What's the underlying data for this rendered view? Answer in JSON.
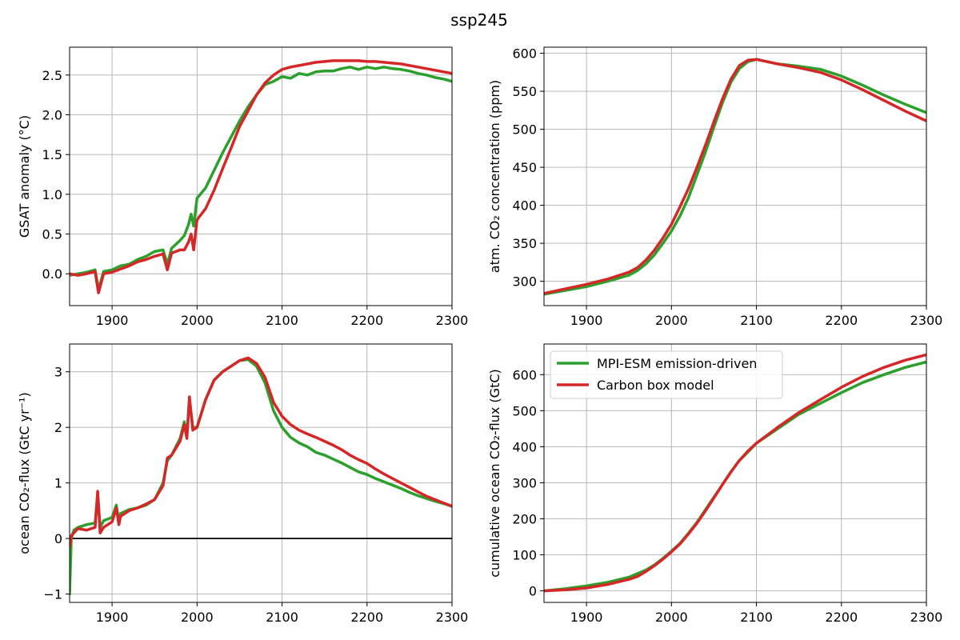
{
  "figure_title": "ssp245",
  "colors": {
    "green": "#2ca02c",
    "red": "#d62728",
    "grid": "#b0b0b0",
    "zero_line": "#000000"
  },
  "chart_data": [
    {
      "id": "gsat",
      "type": "line",
      "ylabel": "GSAT anomaly (°C)",
      "xlim": [
        1850,
        2300
      ],
      "ylim": [
        -0.4,
        2.85
      ],
      "xticks": [
        1900,
        2000,
        2100,
        2200,
        2300
      ],
      "yticks": [
        0.0,
        0.5,
        1.0,
        1.5,
        2.0,
        2.5
      ],
      "ytick_labels": [
        "0.0",
        "0.5",
        "1.0",
        "1.5",
        "2.0",
        "2.5"
      ],
      "grid": true,
      "series": [
        {
          "name": "MPI-ESM emission-driven",
          "color": "#2ca02c",
          "x": [
            1850,
            1860,
            1870,
            1880,
            1884,
            1890,
            1900,
            1910,
            1920,
            1930,
            1940,
            1950,
            1960,
            1965,
            1970,
            1980,
            1985,
            1990,
            1993,
            1996,
            2000,
            2010,
            2020,
            2030,
            2040,
            2050,
            2060,
            2070,
            2080,
            2090,
            2100,
            2110,
            2120,
            2130,
            2140,
            2150,
            2160,
            2170,
            2180,
            2190,
            2200,
            2210,
            2220,
            2230,
            2240,
            2250,
            2260,
            2270,
            2280,
            2290,
            2300
          ],
          "y": [
            -0.02,
            0.0,
            0.02,
            0.05,
            -0.2,
            0.03,
            0.05,
            0.1,
            0.12,
            0.18,
            0.22,
            0.28,
            0.3,
            0.12,
            0.32,
            0.42,
            0.48,
            0.62,
            0.75,
            0.6,
            0.95,
            1.08,
            1.3,
            1.52,
            1.72,
            1.92,
            2.1,
            2.25,
            2.38,
            2.42,
            2.48,
            2.46,
            2.52,
            2.5,
            2.54,
            2.55,
            2.55,
            2.58,
            2.6,
            2.57,
            2.6,
            2.58,
            2.6,
            2.58,
            2.57,
            2.55,
            2.52,
            2.5,
            2.47,
            2.45,
            2.42
          ]
        },
        {
          "name": "Carbon box model",
          "color": "#d62728",
          "x": [
            1850,
            1860,
            1870,
            1880,
            1884,
            1890,
            1900,
            1910,
            1920,
            1930,
            1940,
            1950,
            1960,
            1965,
            1970,
            1980,
            1985,
            1990,
            1993,
            1996,
            2000,
            2010,
            2020,
            2030,
            2040,
            2050,
            2060,
            2070,
            2080,
            2090,
            2100,
            2110,
            2120,
            2130,
            2140,
            2150,
            2160,
            2170,
            2180,
            2190,
            2200,
            2210,
            2220,
            2230,
            2240,
            2250,
            2260,
            2270,
            2280,
            2290,
            2300
          ],
          "y": [
            0.0,
            -0.02,
            0.0,
            0.03,
            -0.24,
            0.0,
            0.02,
            0.06,
            0.1,
            0.15,
            0.18,
            0.22,
            0.25,
            0.05,
            0.26,
            0.3,
            0.3,
            0.4,
            0.5,
            0.3,
            0.68,
            0.82,
            1.05,
            1.32,
            1.58,
            1.85,
            2.05,
            2.25,
            2.4,
            2.5,
            2.57,
            2.6,
            2.62,
            2.64,
            2.66,
            2.67,
            2.68,
            2.68,
            2.68,
            2.68,
            2.67,
            2.67,
            2.66,
            2.65,
            2.64,
            2.62,
            2.6,
            2.58,
            2.56,
            2.54,
            2.52
          ]
        }
      ]
    },
    {
      "id": "co2",
      "type": "line",
      "ylabel": "atm. CO₂ concentration (ppm)",
      "xlim": [
        1850,
        2300
      ],
      "ylim": [
        268,
        608
      ],
      "xticks": [
        1900,
        2000,
        2100,
        2200,
        2300
      ],
      "yticks": [
        300,
        350,
        400,
        450,
        500,
        550,
        600
      ],
      "ytick_labels": [
        "300",
        "350",
        "400",
        "450",
        "500",
        "550",
        "600"
      ],
      "grid": true,
      "series": [
        {
          "name": "MPI-ESM emission-driven",
          "color": "#2ca02c",
          "x": [
            1850,
            1875,
            1900,
            1925,
            1950,
            1960,
            1970,
            1980,
            1990,
            2000,
            2010,
            2020,
            2030,
            2040,
            2050,
            2060,
            2070,
            2080,
            2090,
            2100,
            2125,
            2150,
            2175,
            2200,
            2225,
            2250,
            2275,
            2300
          ],
          "y": [
            283,
            288,
            293,
            300,
            308,
            314,
            323,
            335,
            350,
            366,
            386,
            410,
            440,
            470,
            503,
            535,
            562,
            580,
            589,
            592,
            586,
            583,
            579,
            570,
            558,
            545,
            533,
            522
          ]
        },
        {
          "name": "Carbon box model",
          "color": "#d62728",
          "x": [
            1850,
            1875,
            1900,
            1925,
            1950,
            1960,
            1970,
            1980,
            1990,
            2000,
            2010,
            2020,
            2030,
            2040,
            2050,
            2060,
            2070,
            2080,
            2090,
            2100,
            2125,
            2150,
            2175,
            2200,
            2225,
            2250,
            2275,
            2300
          ],
          "y": [
            284,
            290,
            296,
            303,
            312,
            318,
            328,
            341,
            357,
            375,
            398,
            422,
            450,
            479,
            510,
            540,
            566,
            584,
            591,
            592,
            586,
            581,
            575,
            565,
            552,
            538,
            524,
            511
          ]
        }
      ]
    },
    {
      "id": "flux",
      "type": "line",
      "ylabel": "ocean CO₂-flux (GtC yr⁻¹)",
      "xlim": [
        1850,
        2300
      ],
      "ylim": [
        -1.15,
        3.5
      ],
      "xticks": [
        1900,
        2000,
        2100,
        2200,
        2300
      ],
      "yticks": [
        -1,
        0,
        1,
        2,
        3
      ],
      "ytick_labels": [
        "−1",
        "0",
        "1",
        "2",
        "3"
      ],
      "hline": 0,
      "grid": true,
      "series": [
        {
          "name": "MPI-ESM emission-driven",
          "color": "#2ca02c",
          "x": [
            1850,
            1852,
            1855,
            1860,
            1870,
            1880,
            1883,
            1886,
            1890,
            1900,
            1905,
            1908,
            1910,
            1920,
            1930,
            1940,
            1950,
            1960,
            1965,
            1970,
            1980,
            1985,
            1988,
            1991,
            1995,
            2000,
            2010,
            2020,
            2030,
            2040,
            2050,
            2060,
            2070,
            2080,
            2090,
            2100,
            2110,
            2120,
            2130,
            2140,
            2150,
            2160,
            2170,
            2180,
            2190,
            2200,
            2210,
            2220,
            2230,
            2240,
            2250,
            2260,
            2270,
            2280,
            2290,
            2300
          ],
          "y": [
            -1.0,
            0.0,
            0.15,
            0.2,
            0.25,
            0.28,
            0.8,
            0.2,
            0.32,
            0.38,
            0.6,
            0.3,
            0.45,
            0.52,
            0.55,
            0.6,
            0.7,
            1.0,
            1.4,
            1.5,
            1.8,
            2.1,
            1.85,
            2.5,
            2.0,
            2.0,
            2.5,
            2.85,
            3.0,
            3.1,
            3.2,
            3.22,
            3.1,
            2.8,
            2.3,
            2.0,
            1.82,
            1.72,
            1.65,
            1.55,
            1.5,
            1.43,
            1.36,
            1.28,
            1.2,
            1.15,
            1.08,
            1.02,
            0.96,
            0.9,
            0.83,
            0.77,
            0.72,
            0.67,
            0.63,
            0.58
          ]
        },
        {
          "name": "Carbon box model",
          "color": "#d62728",
          "x": [
            1850,
            1852,
            1855,
            1860,
            1870,
            1880,
            1883,
            1886,
            1890,
            1900,
            1905,
            1908,
            1910,
            1920,
            1930,
            1940,
            1950,
            1960,
            1965,
            1970,
            1980,
            1985,
            1988,
            1991,
            1995,
            2000,
            2010,
            2020,
            2030,
            2040,
            2050,
            2060,
            2070,
            2080,
            2090,
            2100,
            2110,
            2120,
            2130,
            2140,
            2150,
            2160,
            2170,
            2180,
            2190,
            2200,
            2210,
            2220,
            2230,
            2240,
            2250,
            2260,
            2270,
            2280,
            2290,
            2300
          ],
          "y": [
            -0.15,
            0.05,
            0.1,
            0.18,
            0.15,
            0.2,
            0.85,
            0.1,
            0.2,
            0.3,
            0.55,
            0.25,
            0.4,
            0.5,
            0.55,
            0.62,
            0.7,
            0.95,
            1.45,
            1.5,
            1.75,
            2.05,
            1.8,
            2.55,
            1.95,
            2.0,
            2.5,
            2.85,
            3.0,
            3.1,
            3.2,
            3.25,
            3.15,
            2.9,
            2.45,
            2.2,
            2.05,
            1.95,
            1.88,
            1.82,
            1.75,
            1.68,
            1.6,
            1.5,
            1.42,
            1.35,
            1.25,
            1.16,
            1.08,
            1.0,
            0.92,
            0.84,
            0.76,
            0.7,
            0.64,
            0.58
          ]
        }
      ]
    },
    {
      "id": "cumflux",
      "type": "line",
      "ylabel": "cumulative ocean CO₂-flux (GtC)",
      "xlim": [
        1850,
        2300
      ],
      "ylim": [
        -32,
        685
      ],
      "xticks": [
        1900,
        2000,
        2100,
        2200,
        2300
      ],
      "yticks": [
        0,
        100,
        200,
        300,
        400,
        500,
        600
      ],
      "ytick_labels": [
        "0",
        "100",
        "200",
        "300",
        "400",
        "500",
        "600"
      ],
      "grid": true,
      "legend": "upper-left",
      "series": [
        {
          "name": "MPI-ESM emission-driven",
          "color": "#2ca02c",
          "x": [
            1850,
            1875,
            1900,
            1925,
            1950,
            1960,
            1970,
            1980,
            1990,
            2000,
            2010,
            2020,
            2030,
            2040,
            2050,
            2060,
            2070,
            2080,
            2090,
            2100,
            2125,
            2150,
            2175,
            2200,
            2225,
            2250,
            2275,
            2300
          ],
          "y": [
            0,
            6,
            14,
            24,
            38,
            48,
            58,
            72,
            90,
            110,
            132,
            160,
            190,
            225,
            260,
            295,
            330,
            362,
            385,
            410,
            450,
            490,
            520,
            550,
            578,
            600,
            620,
            635
          ]
        },
        {
          "name": "Carbon box model",
          "color": "#d62728",
          "x": [
            1850,
            1875,
            1900,
            1925,
            1950,
            1960,
            1970,
            1980,
            1990,
            2000,
            2010,
            2020,
            2030,
            2040,
            2050,
            2060,
            2070,
            2080,
            2090,
            2100,
            2125,
            2150,
            2175,
            2200,
            2225,
            2250,
            2275,
            2300
          ],
          "y": [
            0,
            3,
            8,
            18,
            32,
            40,
            54,
            70,
            88,
            108,
            130,
            158,
            188,
            222,
            258,
            295,
            330,
            362,
            388,
            410,
            454,
            495,
            530,
            565,
            595,
            620,
            640,
            655
          ]
        }
      ]
    }
  ]
}
